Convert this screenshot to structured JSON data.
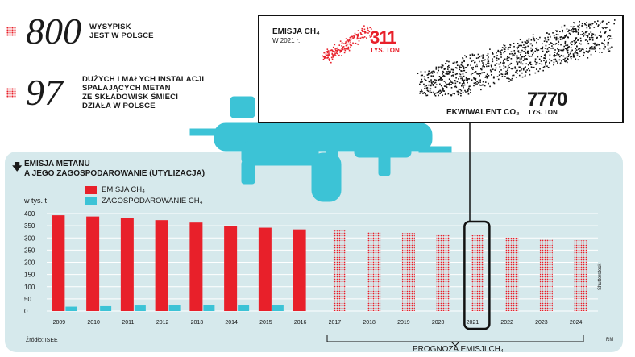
{
  "stats": [
    {
      "number": "800",
      "text_lines": [
        "WYSYPISK",
        "JEST W POLSCE"
      ]
    },
    {
      "number": "97",
      "text_lines": [
        "DUŻYCH I MAŁYCH INSTALACJI",
        "SPALAJĄCYCH METAN",
        "ZE SKŁADOWISK ŚMIECI",
        "DZIAŁA W POLSCE"
      ]
    }
  ],
  "inset": {
    "emission_label": "EMISJA CH₄",
    "emission_year": "W 2021 r.",
    "emission_value": "311",
    "emission_unit": "TYS. TON",
    "equivalent_label": "EKWIWALENT CO₂",
    "equivalent_value": "7770",
    "equivalent_unit": "TYS. TON"
  },
  "chart_title_lines": [
    "EMISJA METANU",
    "A JEGO ZAGOSPODAROWANIE (UTYLIZACJA)"
  ],
  "source": "Źródło: ISEE",
  "credit_right": "RM",
  "vertical_credit": "Shutterstock",
  "forecast_label": "PROGNOZA EMISJI CH₄",
  "colors": {
    "emission": "#e8202a",
    "utilization": "#3cc3d6",
    "panel": "#d6e9ec",
    "machine": "#3cc3d6"
  },
  "chart_data": {
    "type": "bar",
    "ylabel": "w tys. t",
    "ylim": [
      0,
      400
    ],
    "yticks": [
      0,
      50,
      100,
      150,
      200,
      250,
      300,
      350,
      400
    ],
    "categories": [
      "2009",
      "2010",
      "2011",
      "2012",
      "2013",
      "2014",
      "2015",
      "2016",
      "2017",
      "2018",
      "2019",
      "2020",
      "2021",
      "2022",
      "2023",
      "2024"
    ],
    "series": [
      {
        "name": "EMISJA CH₄",
        "values": [
          393,
          388,
          382,
          373,
          363,
          350,
          342,
          335,
          330,
          325,
          320,
          316,
          311,
          301,
          296,
          290
        ]
      },
      {
        "name": "ZAGOSPODAROWANIE CH₄",
        "values": [
          18,
          20,
          23,
          24,
          25,
          25,
          24,
          null,
          null,
          null,
          null,
          null,
          null,
          null,
          null,
          null
        ]
      }
    ],
    "forecast_from": "2017",
    "highlight_category": "2021"
  }
}
